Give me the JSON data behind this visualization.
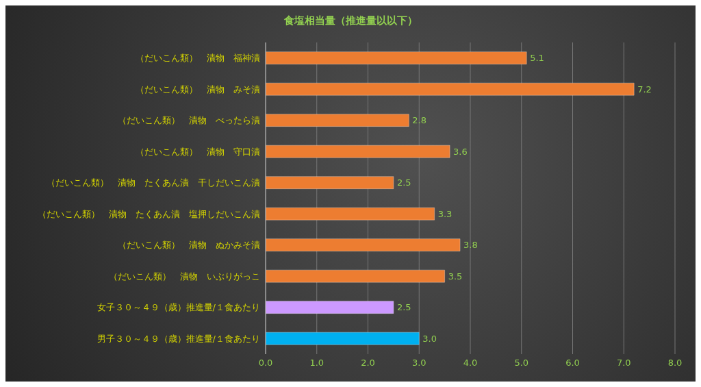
{
  "chart_data": {
    "type": "bar",
    "orientation": "horizontal",
    "title": "食塩相当量（推進量以以下）",
    "categories": [
      "（だいこん類）　漬物　福神漬",
      "（だいこん類）　漬物　みそ漬",
      "（だいこん類）　漬物　べったら漬",
      "（だいこん類）　漬物　守口漬",
      "（だいこん類）　漬物　たくあん漬　干しだいこん漬",
      "（だいこん類）　漬物　たくあん漬　塩押しだいこん漬",
      "（だいこん類）　漬物　ぬかみそ漬",
      "（だいこん類）　漬物　いぶりがっこ",
      "女子３０～４９（歳）推進量/１食あたり",
      "男子３０～４９（歳）推進量/１食あたり"
    ],
    "values": [
      5.1,
      7.2,
      2.8,
      3.6,
      2.5,
      3.3,
      3.8,
      3.5,
      2.5,
      3.0
    ],
    "colors": [
      "#ed7d31",
      "#ed7d31",
      "#ed7d31",
      "#ed7d31",
      "#ed7d31",
      "#ed7d31",
      "#ed7d31",
      "#ed7d31",
      "#cc99ff",
      "#00b0f0"
    ],
    "xlim": [
      0,
      8
    ],
    "xticks": [
      {
        "value": 0,
        "label": "0.0"
      },
      {
        "value": 1,
        "label": "1.0"
      },
      {
        "value": 2,
        "label": "2.0"
      },
      {
        "value": 3,
        "label": "3.0"
      },
      {
        "value": 4,
        "label": "4.0"
      },
      {
        "value": 5,
        "label": "5.0"
      },
      {
        "value": 6,
        "label": "6.0"
      },
      {
        "value": 7,
        "label": "7.0"
      },
      {
        "value": 8,
        "label": "8.0"
      }
    ],
    "value_labels": [
      "5.1",
      "7.2",
      "2.8",
      "3.6",
      "2.5",
      "3.3",
      "3.8",
      "3.5",
      "2.5",
      "3.0"
    ],
    "grid": "x",
    "legend": false
  }
}
